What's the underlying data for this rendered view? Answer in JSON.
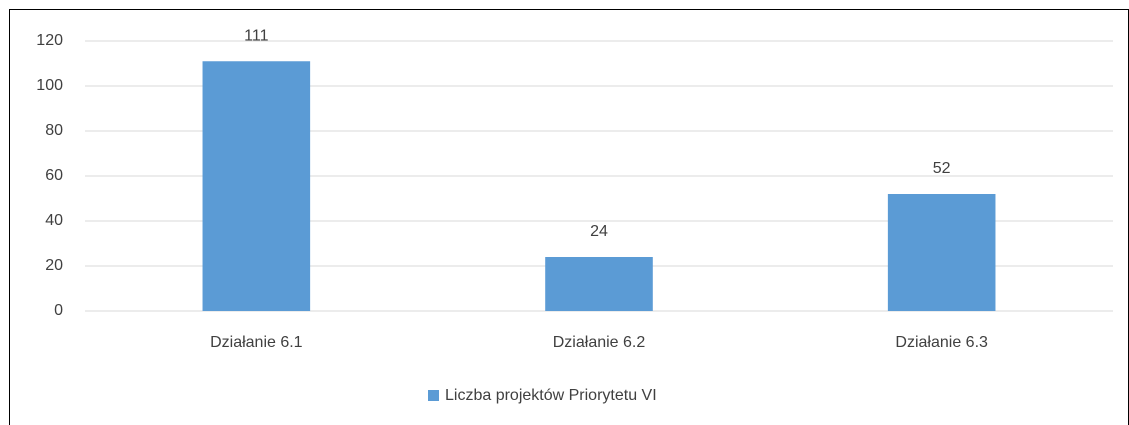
{
  "chart_data": {
    "type": "bar",
    "categories": [
      "Działanie 6.1",
      "Działanie 6.2",
      "Działanie 6.3"
    ],
    "series": [
      {
        "name": "Liczba projektów Priorytetu VI",
        "color": "#5b9bd5",
        "values": [
          111,
          24,
          52
        ]
      }
    ],
    "ylim": [
      0,
      120
    ],
    "yticks": [
      0,
      20,
      40,
      60,
      80,
      100,
      120
    ],
    "grid": true,
    "legend": "bottom"
  }
}
